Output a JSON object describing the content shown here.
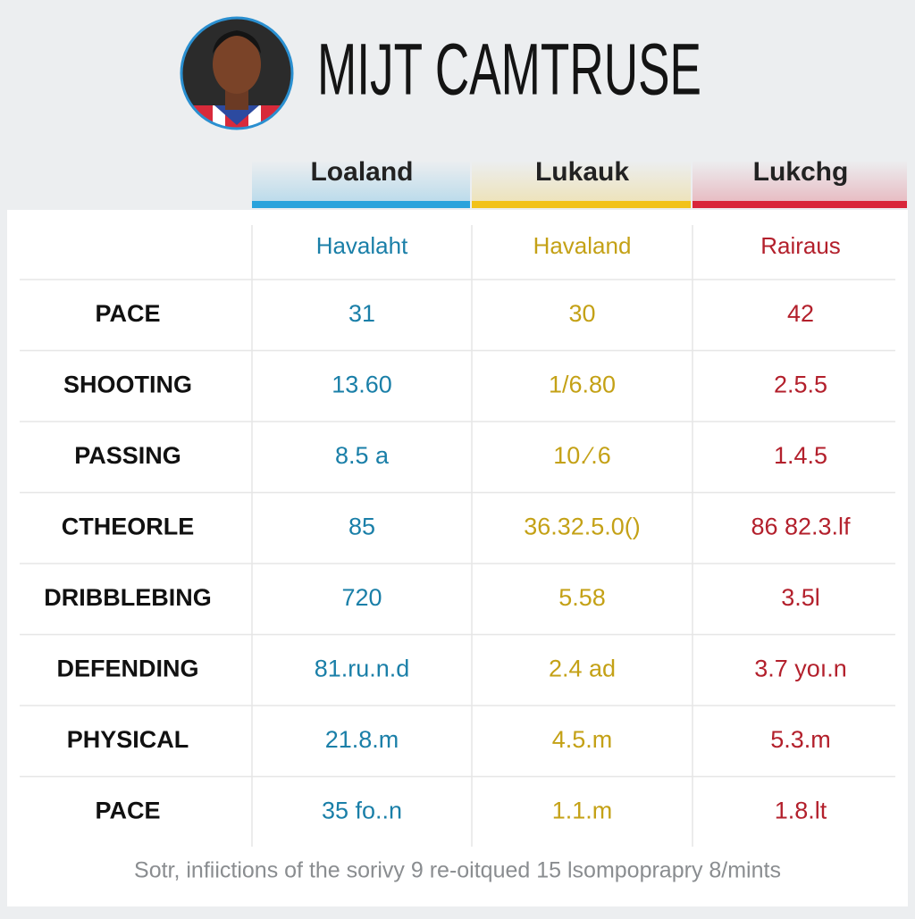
{
  "header": {
    "title": "MIJT CAMTRUSE"
  },
  "table": {
    "columns": [
      {
        "name": "Loaland",
        "sub": "Havalaht",
        "color": "#1a7fa8",
        "bar": "#2aa3dc"
      },
      {
        "name": "Lukauk",
        "sub": "Havaland",
        "color": "#c4a116",
        "bar": "#f2c21b"
      },
      {
        "name": "Lukchg",
        "sub": "Rairaus",
        "color": "#b3202c",
        "bar": "#d9263a"
      }
    ],
    "rows": [
      [
        "PACE",
        "31",
        "30",
        "42"
      ],
      [
        "SHOOTING",
        "13.60",
        "1/6.80",
        "2.5.5"
      ],
      [
        "PASSING",
        "8.5 a",
        "10.⁄.6",
        "1.4.5"
      ],
      [
        "CTHEORLE",
        "85",
        "36.32.5.0()",
        "86 82.3.lf"
      ],
      [
        "DRIBBLEBING",
        "720",
        "5.58",
        "3.5l"
      ],
      [
        "DEFENDING",
        "81.ru.n.d",
        "2.4 ad",
        "3.7 yoı.n"
      ],
      [
        "PHYSICAL",
        "21.8.m",
        "4.5.m",
        "5.3.m"
      ],
      [
        "PACE",
        "35 fo..n",
        "1.1.m",
        "1.8.lt"
      ]
    ]
  },
  "footer": {
    "note": "Sotr, infiictions of the sorivy 9 re-oitqued 15 lsompoprapry 8/mints"
  }
}
